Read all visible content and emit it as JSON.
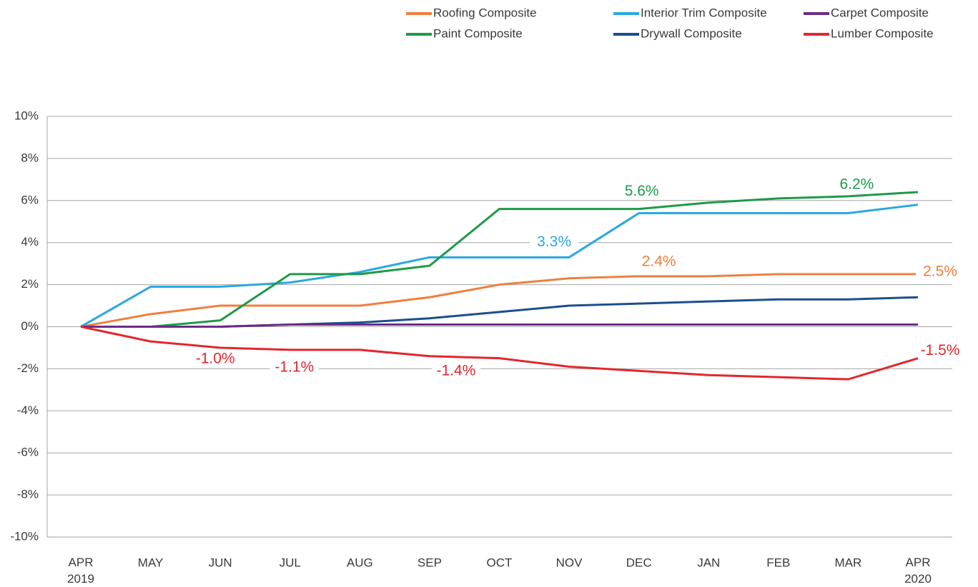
{
  "chart_data": {
    "type": "line",
    "categories": [
      "APR 2019",
      "MAY",
      "JUN",
      "JUL",
      "AUG",
      "SEP",
      "OCT",
      "NOV",
      "DEC",
      "JAN",
      "FEB",
      "MAR",
      "APR 2020"
    ],
    "series": [
      {
        "name": "Roofing Composite",
        "color": "#f07f3c",
        "values": [
          0,
          0.6,
          1.0,
          1.0,
          1.0,
          1.4,
          2.0,
          2.3,
          2.4,
          2.4,
          2.5,
          2.5,
          2.5
        ],
        "value_labels": [
          null,
          null,
          null,
          null,
          null,
          null,
          null,
          null,
          "2.4%",
          null,
          null,
          null,
          "2.5%"
        ]
      },
      {
        "name": "Interior Trim Composite",
        "color": "#29a8e0",
        "values": [
          0,
          1.9,
          1.9,
          2.1,
          2.6,
          3.3,
          3.3,
          3.3,
          5.4,
          5.4,
          5.4,
          5.4,
          5.8
        ],
        "value_labels": [
          null,
          null,
          null,
          null,
          null,
          null,
          null,
          "3.3%",
          null,
          null,
          null,
          null,
          null
        ]
      },
      {
        "name": "Carpet Composite",
        "color": "#6b2c87",
        "values": [
          0,
          0,
          0,
          0.1,
          0.1,
          0.1,
          0.1,
          0.1,
          0.1,
          0.1,
          0.1,
          0.1,
          0.1
        ]
      },
      {
        "name": "Paint Composite",
        "color": "#1e9a48",
        "values": [
          0,
          0,
          0.3,
          2.5,
          2.5,
          2.9,
          5.6,
          5.6,
          5.6,
          5.9,
          6.1,
          6.2,
          6.4
        ],
        "value_labels": [
          null,
          null,
          null,
          null,
          null,
          null,
          null,
          null,
          "5.6%",
          null,
          null,
          "6.2%",
          null
        ]
      },
      {
        "name": "Drywall Composite",
        "color": "#1b4f8c",
        "values": [
          0,
          0,
          0,
          0.1,
          0.2,
          0.4,
          0.7,
          1.0,
          1.1,
          1.2,
          1.3,
          1.3,
          1.4
        ]
      },
      {
        "name": "Lumber Composite",
        "color": "#e3262d",
        "values": [
          0,
          -0.7,
          -1.0,
          -1.1,
          -1.1,
          -1.4,
          -1.5,
          -1.9,
          -2.1,
          -2.3,
          -2.4,
          -2.5,
          -1.5
        ],
        "value_labels": [
          null,
          null,
          "-1.0%",
          "-1.1%",
          null,
          "-1.4%",
          null,
          null,
          null,
          null,
          null,
          null,
          "-1.5%"
        ]
      }
    ],
    "ylim": [
      -10,
      10
    ],
    "yticks": [
      {
        "value": -10,
        "label": "-10%"
      },
      {
        "value": -8,
        "label": "-8%"
      },
      {
        "value": -6,
        "label": "-6%"
      },
      {
        "value": -4,
        "label": "-4%"
      },
      {
        "value": -2,
        "label": "-2%"
      },
      {
        "value": 0,
        "label": "0%"
      },
      {
        "value": 2,
        "label": "2%"
      },
      {
        "value": 4,
        "label": "4%"
      },
      {
        "value": 6,
        "label": "6%"
      },
      {
        "value": 8,
        "label": "8%"
      },
      {
        "value": 10,
        "label": "10%"
      }
    ],
    "grid": true,
    "legend": "top-right"
  }
}
